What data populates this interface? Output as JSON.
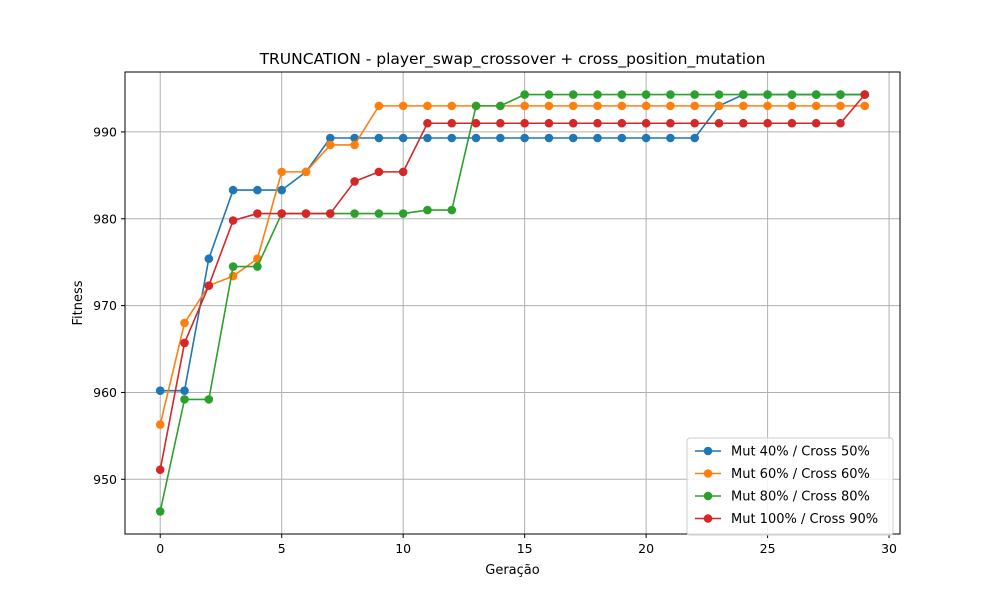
{
  "chart_data": {
    "type": "line",
    "title": "TRUNCATION - player_swap_crossover + cross_position_mutation",
    "xlabel": "Geração",
    "ylabel": "Fitness",
    "xlim": [
      -1.45,
      30.45
    ],
    "ylim": [
      943.7,
      996.9
    ],
    "xticks": [
      0,
      5,
      10,
      15,
      20,
      25,
      30
    ],
    "yticks": [
      950,
      960,
      970,
      980,
      990
    ],
    "grid": true,
    "legend_position": "lower-right",
    "x": [
      0,
      1,
      2,
      3,
      4,
      5,
      6,
      7,
      8,
      9,
      10,
      11,
      12,
      13,
      14,
      15,
      16,
      17,
      18,
      19,
      20,
      21,
      22,
      23,
      24,
      25,
      26,
      27,
      28,
      29
    ],
    "series": [
      {
        "name": "Mut 40% / Cross 50%",
        "color": "#1f77b4",
        "values": [
          960.2,
          960.2,
          975.4,
          983.3,
          983.3,
          983.3,
          985.4,
          989.3,
          989.3,
          989.3,
          989.3,
          989.3,
          989.3,
          989.3,
          989.3,
          989.3,
          989.3,
          989.3,
          989.3,
          989.3,
          989.3,
          989.3,
          989.3,
          993.0,
          994.3,
          994.3,
          994.3,
          994.3,
          994.3,
          994.3
        ]
      },
      {
        "name": "Mut 60% / Cross 60%",
        "color": "#ff7f0e",
        "values": [
          956.3,
          968.0,
          972.3,
          973.4,
          975.4,
          985.4,
          985.4,
          988.5,
          988.5,
          993.0,
          993.0,
          993.0,
          993.0,
          993.0,
          993.0,
          993.0,
          993.0,
          993.0,
          993.0,
          993.0,
          993.0,
          993.0,
          993.0,
          993.0,
          993.0,
          993.0,
          993.0,
          993.0,
          993.0,
          993.0
        ]
      },
      {
        "name": "Mut 80% / Cross 80%",
        "color": "#2ca02c",
        "values": [
          946.3,
          959.2,
          959.2,
          974.5,
          974.5,
          980.6,
          980.6,
          980.6,
          980.6,
          980.6,
          980.6,
          981.0,
          981.0,
          993.0,
          993.0,
          994.3,
          994.3,
          994.3,
          994.3,
          994.3,
          994.3,
          994.3,
          994.3,
          994.3,
          994.3,
          994.3,
          994.3,
          994.3,
          994.3,
          994.3
        ]
      },
      {
        "name": "Mut 100% / Cross 90%",
        "color": "#d62728",
        "values": [
          951.1,
          965.7,
          972.3,
          979.8,
          980.6,
          980.6,
          980.6,
          980.6,
          984.3,
          985.4,
          985.4,
          991.0,
          991.0,
          991.0,
          991.0,
          991.0,
          991.0,
          991.0,
          991.0,
          991.0,
          991.0,
          991.0,
          991.0,
          991.0,
          991.0,
          991.0,
          991.0,
          991.0,
          991.0,
          994.3
        ]
      }
    ]
  }
}
